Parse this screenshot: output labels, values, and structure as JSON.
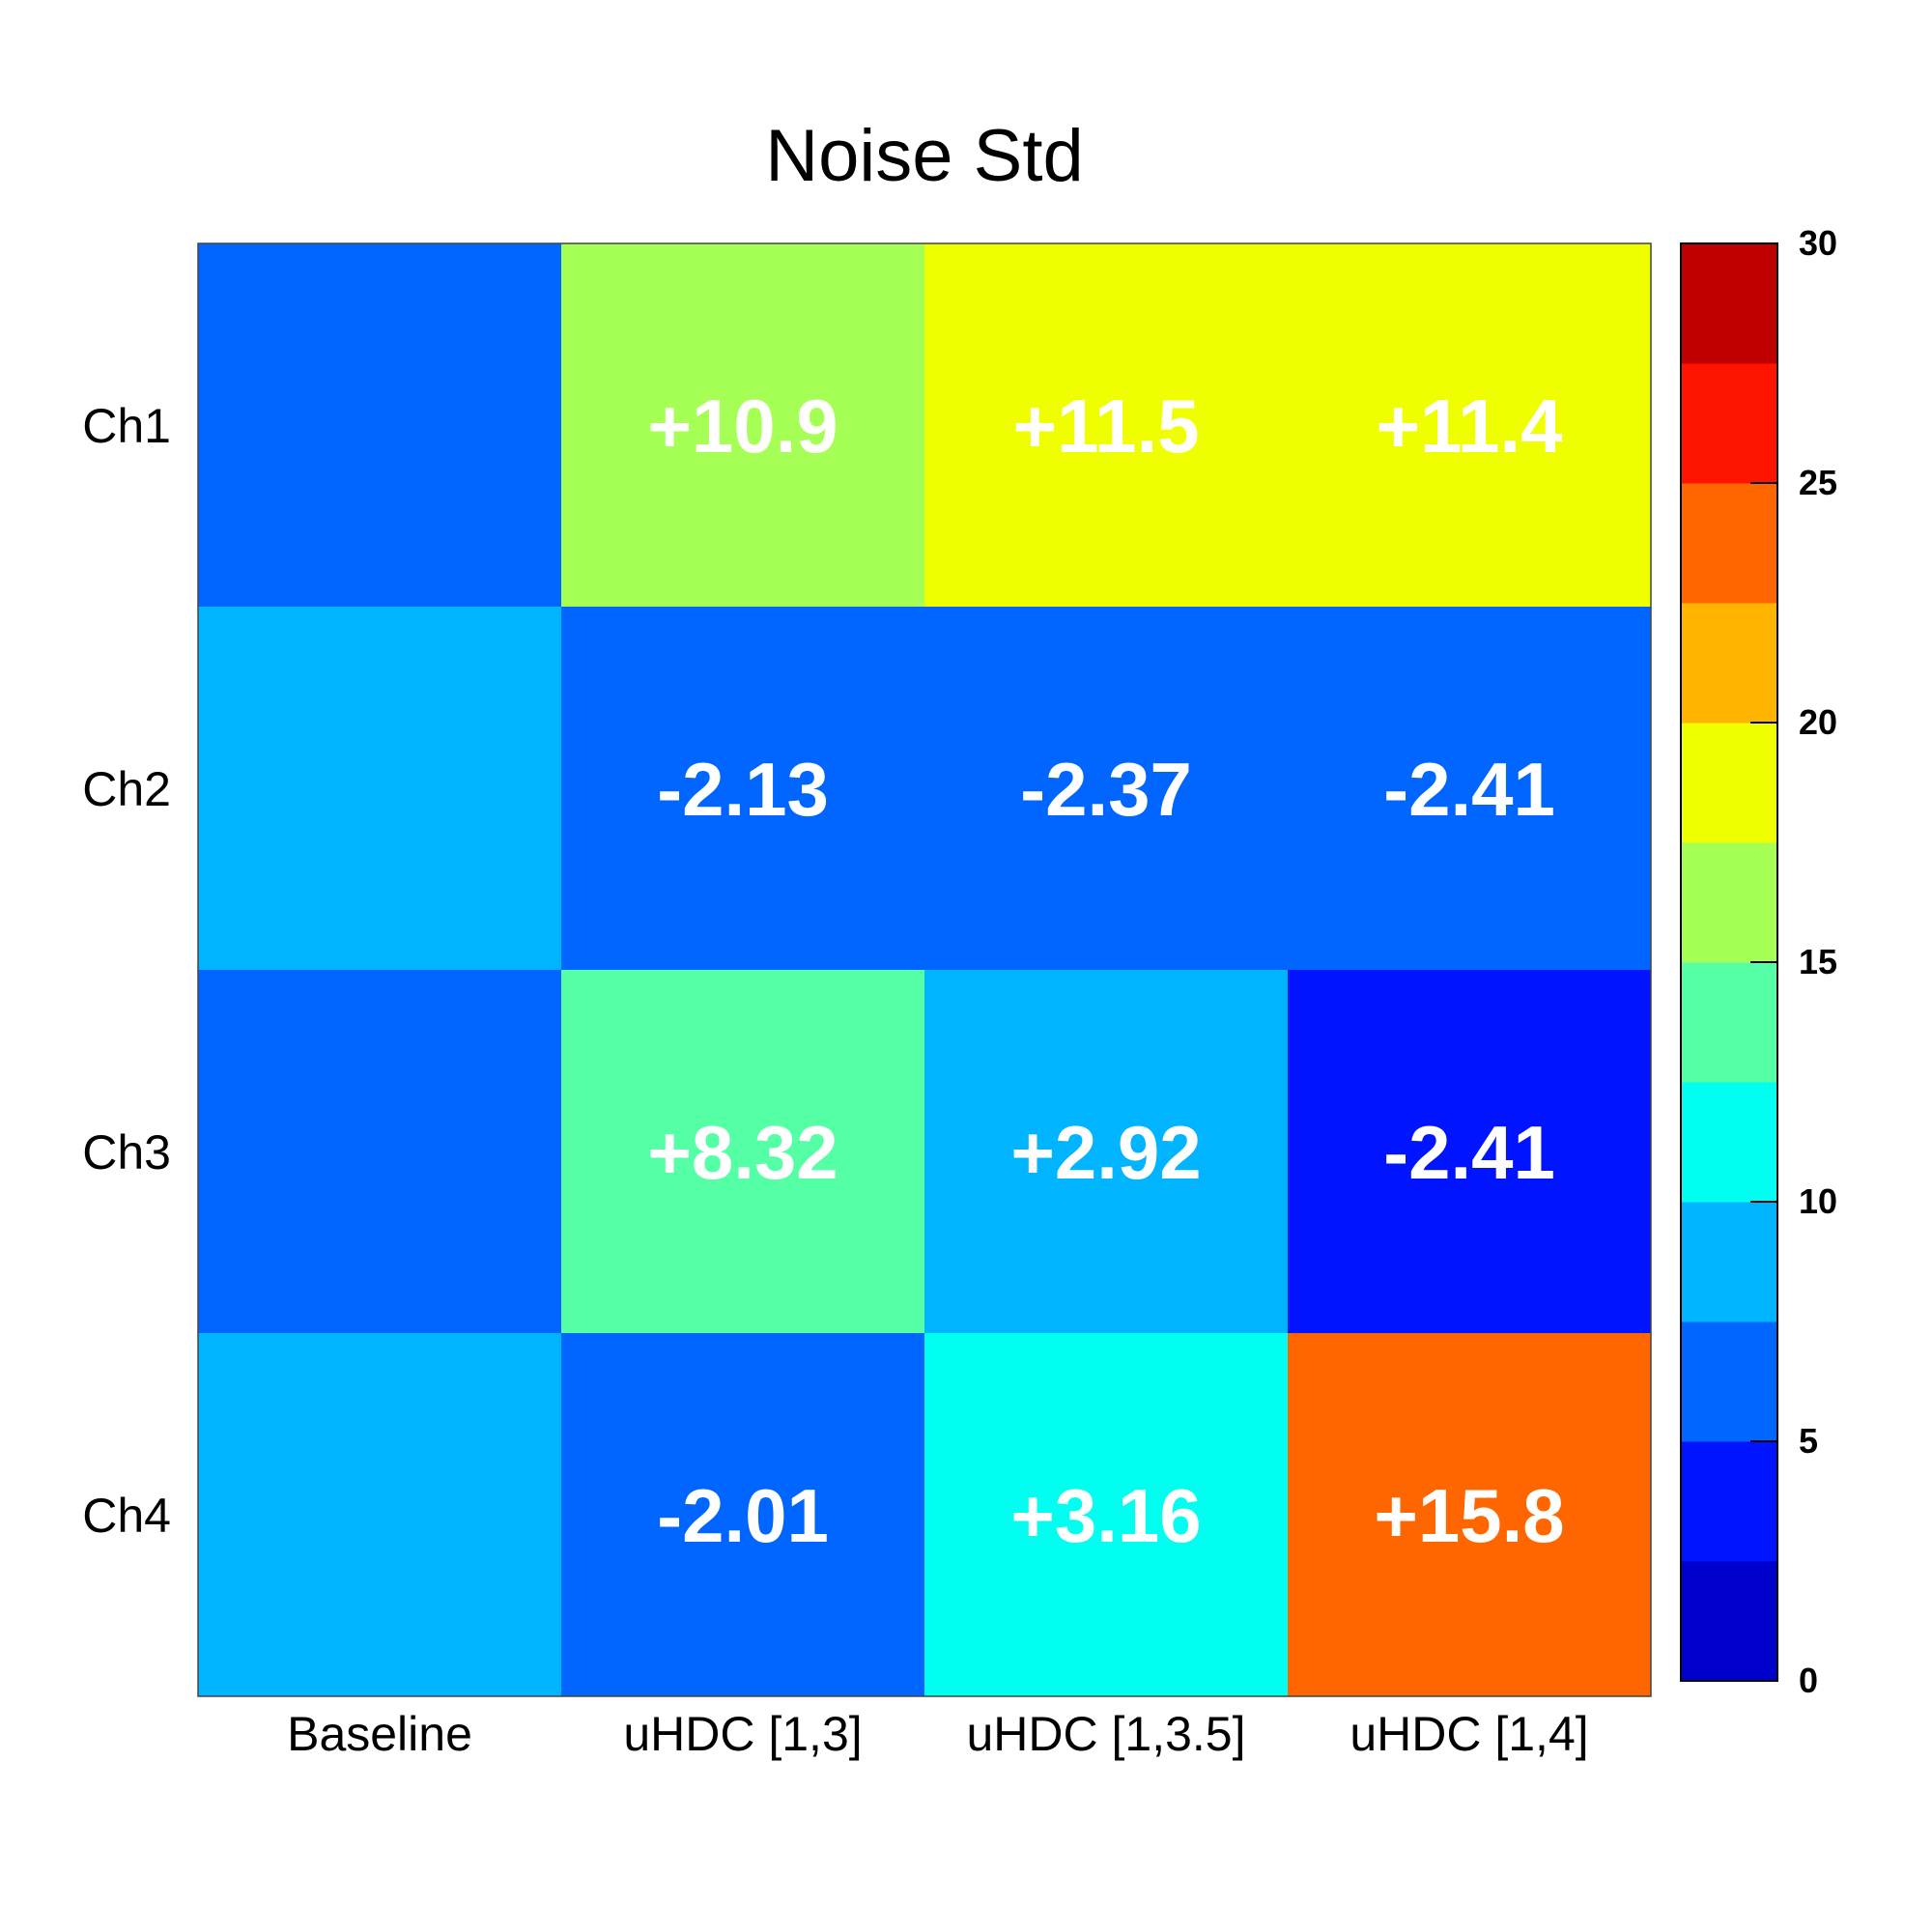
{
  "chart_data": {
    "type": "heatmap",
    "title": "Noise Std",
    "rows": [
      "Ch1",
      "Ch2",
      "Ch3",
      "Ch4"
    ],
    "columns": [
      "Baseline",
      "uHDC [1,3]",
      "uHDC [1,3.5]",
      "uHDC [1,4]"
    ],
    "values": [
      [
        6.5,
        17.4,
        18.0,
        17.9
      ],
      [
        8.8,
        6.7,
        6.4,
        6.4
      ],
      [
        6.2,
        14.5,
        9.1,
        3.8
      ],
      [
        8.1,
        6.1,
        11.3,
        23.9
      ]
    ],
    "cell_labels": [
      [
        "",
        "+10.9",
        "+11.5",
        "+11.4"
      ],
      [
        "",
        "-2.13",
        "-2.37",
        "-2.41"
      ],
      [
        "",
        "+8.32",
        "+2.92",
        "-2.41"
      ],
      [
        "",
        "-2.01",
        "+3.16",
        "+15.8"
      ]
    ],
    "colorbar": {
      "range": [
        0,
        30
      ],
      "ticks": [
        "0",
        "5",
        "10",
        "15",
        "20",
        "25",
        "30"
      ],
      "colors": [
        "#0000cc",
        "#0014ff",
        "#0066ff",
        "#00b4ff",
        "#00fff0",
        "#55ffa6",
        "#a6ff55",
        "#f0ff00",
        "#ffb400",
        "#ff6600",
        "#ff1400",
        "#c00000"
      ]
    }
  }
}
